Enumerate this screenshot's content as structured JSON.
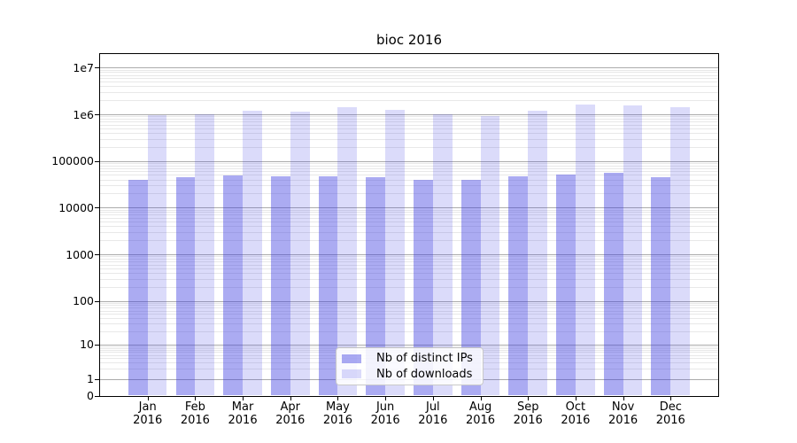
{
  "chart_data": {
    "type": "bar",
    "title": "bioc 2016",
    "year": "2016",
    "categories": [
      "Jan",
      "Feb",
      "Mar",
      "Apr",
      "May",
      "Jun",
      "Jul",
      "Aug",
      "Sep",
      "Oct",
      "Nov",
      "Dec"
    ],
    "series": [
      {
        "name": "Nb of distinct IPs",
        "color": "rgba(55,55,225,0.42)",
        "values": [
          39000,
          44000,
          49000,
          47000,
          47000,
          44000,
          38500,
          39000,
          46500,
          52000,
          55500,
          45500
        ]
      },
      {
        "name": "Nb of downloads",
        "color": "rgba(55,55,225,0.18)",
        "values": [
          960000,
          990000,
          1180000,
          1140000,
          1400000,
          1230000,
          990000,
          920000,
          1190000,
          1650000,
          1550000,
          1400000
        ]
      }
    ],
    "yscale": "symlog",
    "ylim": [
      0,
      20000000
    ],
    "ytick_labels": [
      "1e7",
      "1e6",
      "100000",
      "10000",
      "1000",
      "100",
      "10",
      "1",
      "0"
    ],
    "grid": true,
    "legend_position": "lower center"
  },
  "colors": {
    "background": "#ffffff",
    "grid_major": "#ababab",
    "grid_minor": "#e8e8e8",
    "axis": "#000000",
    "bar_distinct_ips": "rgba(55,55,225,0.42)",
    "bar_downloads": "rgba(55,55,225,0.18)",
    "legend_border": "#c9c9c9"
  }
}
